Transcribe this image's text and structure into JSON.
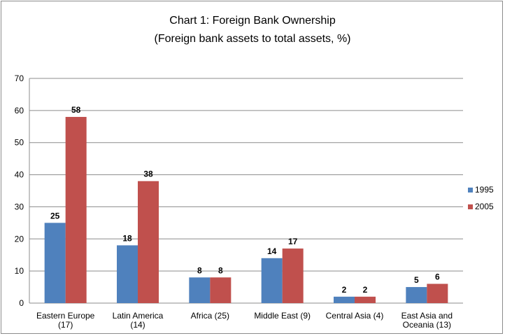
{
  "chart_data": {
    "type": "bar",
    "title": "Chart 1: Foreign Bank Ownership",
    "subtitle": "(Foreign bank assets to total assets, %)",
    "categories": [
      [
        "Eastern Europe",
        "(17)"
      ],
      [
        "Latin America",
        "(14)"
      ],
      [
        "Africa (25)"
      ],
      [
        "Middle East (9)"
      ],
      [
        "Central Asia (4)"
      ],
      [
        "East Asia and",
        "Oceania (13)"
      ]
    ],
    "series": [
      {
        "name": "1995",
        "values": [
          25,
          18,
          8,
          14,
          2,
          5
        ],
        "color": "#4f81bd"
      },
      {
        "name": "2005",
        "values": [
          58,
          38,
          8,
          17,
          2,
          6
        ],
        "color": "#c0504d"
      }
    ],
    "ylim": [
      0,
      70
    ],
    "yticks": [
      0,
      10,
      20,
      30,
      40,
      50,
      60,
      70
    ],
    "grid": true,
    "legend": "right",
    "xlabel": "",
    "ylabel": ""
  }
}
